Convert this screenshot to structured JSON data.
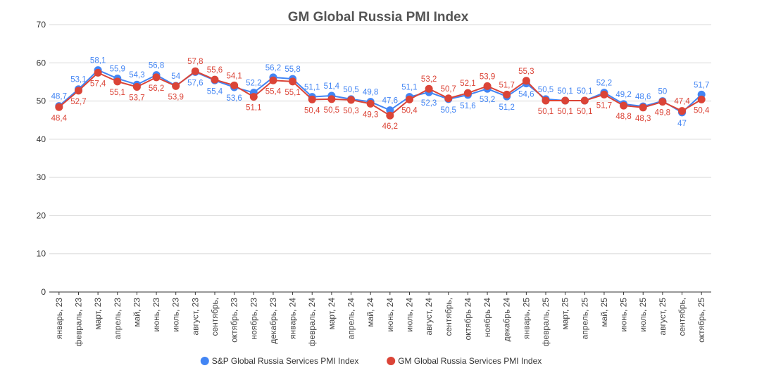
{
  "chart_data": {
    "type": "line",
    "title": "GM Global Russia PMI Index",
    "xlabel": "",
    "ylabel": "",
    "ylim": [
      0,
      70
    ],
    "yticks": [
      "0",
      "10",
      "20",
      "30",
      "40",
      "50",
      "60",
      "70"
    ],
    "grid": true,
    "legend_position": "bottom",
    "categories": [
      "январь, 23",
      "февраль, 23",
      "март, 23",
      "апрель, 23",
      "май, 23",
      "июнь, 23",
      "июль, 23",
      "август, 23",
      "сентябрь,",
      "октябрь, 23",
      "ноябрь, 23",
      "декабрь, 23",
      "январь, 24",
      "февраль, 24",
      "март, 24",
      "апрель, 24",
      "май, 24",
      "июнь, 24",
      "июль, 24",
      "август, 24",
      "сентябрь,",
      "октябрь 24",
      "ноябрь 24",
      "декабрь 24",
      "январь, 25",
      "февраль, 25",
      "март, 25",
      "апрель, 25",
      "май, 25",
      "июнь, 25",
      "июль, 25",
      "август, 25",
      "сентябрь,",
      "октябрь, 25"
    ],
    "series": [
      {
        "name": "S&P Global Russia Services PMI Index",
        "color": "#4285f4",
        "values": [
          48.7,
          53.1,
          58.1,
          55.9,
          54.3,
          56.8,
          54,
          57.6,
          55.4,
          53.6,
          52.2,
          56.2,
          55.8,
          51.1,
          51.4,
          50.5,
          49.8,
          47.6,
          51.1,
          52.3,
          50.5,
          51.6,
          53.2,
          51.2,
          54.6,
          50.5,
          50.1,
          50.1,
          52.2,
          49.2,
          48.6,
          50,
          47,
          51.7
        ],
        "labels": [
          "48,7",
          "53,1",
          "58,1",
          "55,9",
          "54,3",
          "56,8",
          "54",
          "57,6",
          "55,4",
          "53,6",
          "52,2",
          "56,2",
          "55,8",
          "51,1",
          "51,4",
          "50,5",
          "49,8",
          "47,6",
          "51,1",
          "52,3",
          "50,5",
          "51,6",
          "53,2",
          "51,2",
          "54,6",
          "50,5",
          "50,1",
          "50,1",
          "52,2",
          "49,2",
          "48,6",
          "50",
          "47",
          "51,7"
        ]
      },
      {
        "name": "GM Global Russia Services PMI Index",
        "color": "#db4437",
        "values": [
          48.4,
          52.7,
          57.4,
          55.1,
          53.7,
          56.2,
          53.9,
          57.8,
          55.6,
          54.1,
          51.1,
          55.4,
          55.1,
          50.4,
          50.5,
          50.3,
          49.3,
          46.2,
          50.4,
          53.2,
          50.7,
          52.1,
          53.9,
          51.7,
          55.3,
          50.1,
          50.1,
          50.1,
          51.7,
          48.8,
          48.3,
          49.8,
          47.4,
          50.4
        ],
        "labels": [
          "48,4",
          "52,7",
          "57,4",
          "55,1",
          "53,7",
          "56,2",
          "53,9",
          "57,8",
          "55,6",
          "54,1",
          "51,1",
          "55,4",
          "55,1",
          "50,4",
          "50,5",
          "50,3",
          "49,3",
          "46,2",
          "50,4",
          "53,2",
          "50,7",
          "52,1",
          "53,9",
          "51,7",
          "55,3",
          "50,1",
          "50,1",
          "50,1",
          "51,7",
          "48,8",
          "48,3",
          "49,8",
          "47,4",
          "50,4"
        ]
      }
    ]
  }
}
